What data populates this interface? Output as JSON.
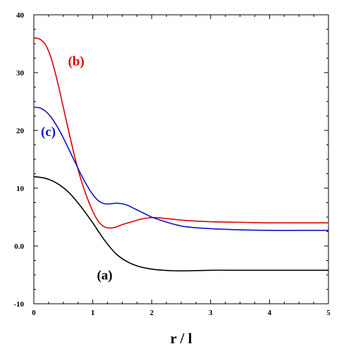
{
  "chart_data": {
    "type": "line",
    "title": "",
    "xlabel": "r / l",
    "ylabel": "",
    "xlim": [
      0,
      5
    ],
    "ylim": [
      -10,
      40
    ],
    "grid": false,
    "x_ticks": [
      "0",
      "1",
      "2",
      "3",
      "4",
      "5"
    ],
    "y_ticks": [
      "-10",
      "0.0",
      "10",
      "20",
      "30",
      "40"
    ],
    "x_tick_values": [
      0,
      1,
      2,
      3,
      4,
      5
    ],
    "y_tick_values": [
      -10,
      0,
      10,
      20,
      30,
      40
    ],
    "series": [
      {
        "name": "(a)",
        "color": "#000000",
        "x": [
          0,
          0.2,
          0.4,
          0.6,
          0.8,
          1.0,
          1.2,
          1.4,
          1.6,
          1.8,
          2.0,
          2.2,
          2.4,
          2.6,
          3.0,
          3.5,
          4.0,
          4.5,
          5.0
        ],
        "y": [
          12.0,
          11.7,
          10.8,
          9.2,
          6.8,
          4.0,
          1.0,
          -1.4,
          -2.8,
          -3.6,
          -4.0,
          -4.2,
          -4.3,
          -4.3,
          -4.2,
          -4.2,
          -4.2,
          -4.2,
          -4.2
        ]
      },
      {
        "name": "(b)",
        "color": "#e00000",
        "x": [
          0,
          0.1,
          0.2,
          0.3,
          0.4,
          0.5,
          0.6,
          0.7,
          0.8,
          0.9,
          1.0,
          1.1,
          1.2,
          1.3,
          1.4,
          1.5,
          1.6,
          1.7,
          1.8,
          1.9,
          2.0,
          2.1,
          2.2,
          2.4,
          2.6,
          3.0,
          3.5,
          4.0,
          4.5,
          5.0
        ],
        "y": [
          36.0,
          35.8,
          34.8,
          32.3,
          28.5,
          24.0,
          19.5,
          15.2,
          11.5,
          8.5,
          6.0,
          4.2,
          3.3,
          3.1,
          3.3,
          3.7,
          4.0,
          4.3,
          4.6,
          4.8,
          4.9,
          4.9,
          4.8,
          4.6,
          4.4,
          4.2,
          4.1,
          4.0,
          4.0,
          4.0
        ]
      },
      {
        "name": "(c)",
        "color": "#1010d0",
        "x": [
          0,
          0.1,
          0.2,
          0.3,
          0.4,
          0.5,
          0.6,
          0.7,
          0.8,
          0.9,
          1.0,
          1.1,
          1.2,
          1.3,
          1.4,
          1.5,
          1.6,
          1.7,
          1.8,
          1.9,
          2.0,
          2.2,
          2.4,
          2.6,
          3.0,
          3.5,
          4.0,
          4.5,
          5.0
        ],
        "y": [
          24.0,
          23.9,
          23.3,
          22.2,
          20.6,
          18.7,
          16.6,
          14.5,
          12.4,
          10.5,
          8.9,
          7.8,
          7.3,
          7.3,
          7.4,
          7.3,
          7.0,
          6.5,
          6.0,
          5.5,
          5.0,
          4.3,
          3.7,
          3.3,
          3.0,
          2.8,
          2.7,
          2.7,
          2.7
        ]
      }
    ],
    "annotations": [
      {
        "text": "(b)",
        "x": 0.58,
        "y": 31.2,
        "color": "#e00000"
      },
      {
        "text": "(c)",
        "x": 0.12,
        "y": 19.0,
        "color": "#1010d0"
      },
      {
        "text": "(a)",
        "x": 1.07,
        "y": -5.8,
        "color": "#000000"
      }
    ]
  }
}
